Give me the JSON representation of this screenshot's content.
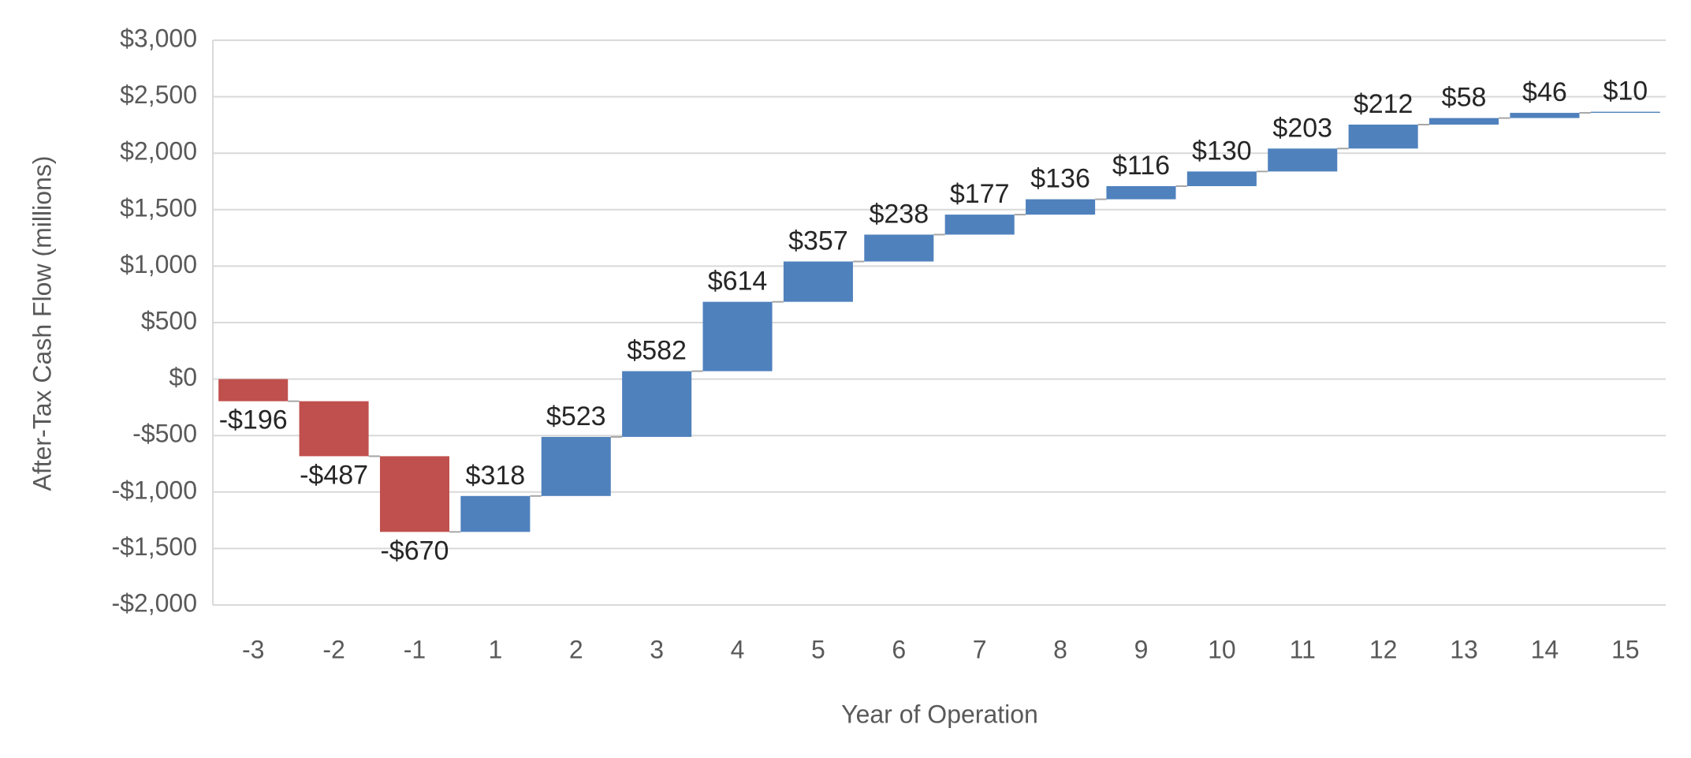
{
  "chart_data": {
    "type": "waterfall",
    "x_label": "Year of Operation",
    "y_label": "After-Tax Cash Flow (millions)",
    "categories": [
      "-3",
      "-2",
      "-1",
      "1",
      "2",
      "3",
      "4",
      "5",
      "6",
      "7",
      "8",
      "9",
      "10",
      "11",
      "12",
      "13",
      "14",
      "15"
    ],
    "values": [
      -196,
      -487,
      -670,
      318,
      523,
      582,
      614,
      357,
      238,
      177,
      136,
      116,
      130,
      203,
      212,
      58,
      46,
      10
    ],
    "value_labels": [
      "-$196",
      "-$487",
      "-$670",
      "$318",
      "$523",
      "$582",
      "$614",
      "$357",
      "$238",
      "$177",
      "$136",
      "$116",
      "$130",
      "$203",
      "$212",
      "$58",
      "$46",
      "$10"
    ],
    "positive_color": "#4f81bd",
    "negative_color": "#c0504d",
    "ylim": [
      -2000,
      3000
    ],
    "yticks": [
      {
        "value": -2000,
        "label": "-$2,000"
      },
      {
        "value": -1500,
        "label": "-$1,500"
      },
      {
        "value": -1000,
        "label": "-$1,000"
      },
      {
        "value": -500,
        "label": "-$500"
      },
      {
        "value": 0,
        "label": "$0"
      },
      {
        "value": 500,
        "label": "$500"
      },
      {
        "value": 1000,
        "label": "$1,000"
      },
      {
        "value": 1500,
        "label": "$1,500"
      },
      {
        "value": 2000,
        "label": "$2,000"
      },
      {
        "value": 2500,
        "label": "$2,500"
      },
      {
        "value": 3000,
        "label": "$3,000"
      }
    ],
    "grid": true
  }
}
